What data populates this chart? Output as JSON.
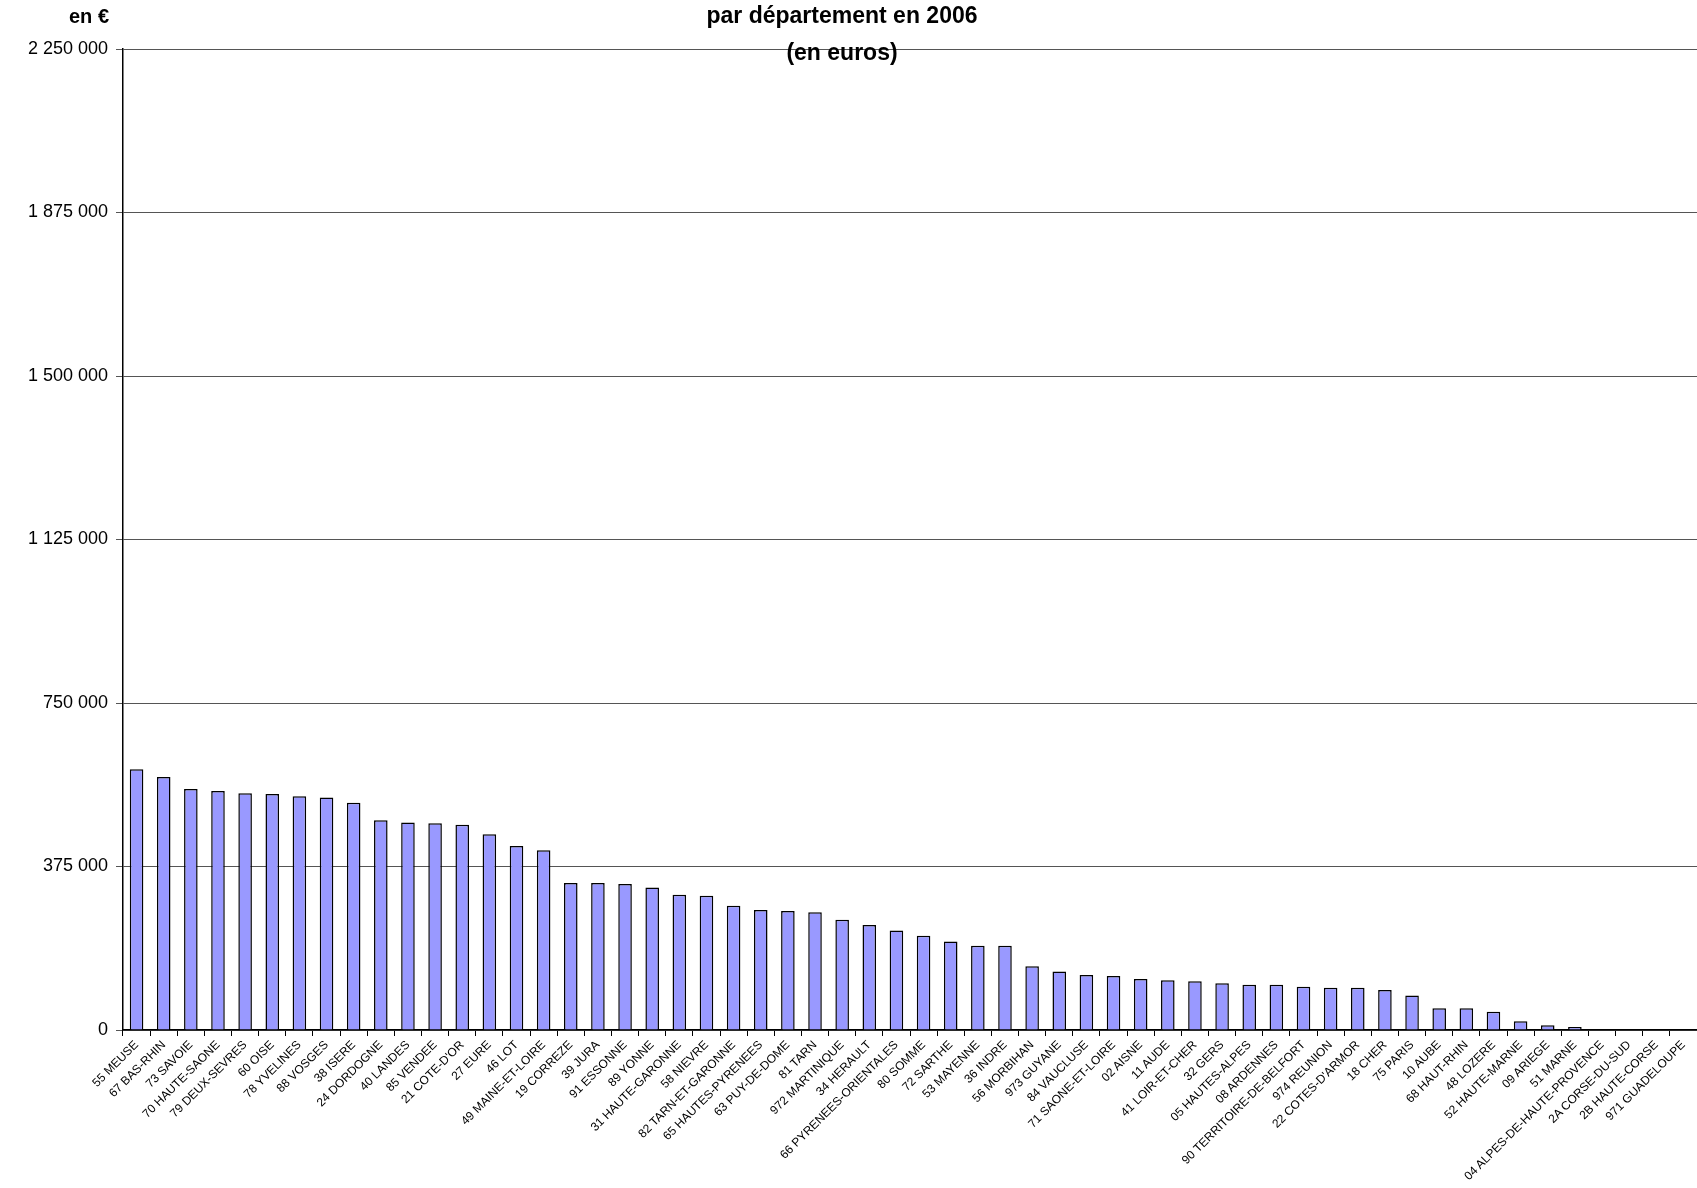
{
  "chart_data": {
    "type": "bar",
    "title": "par département en 2006\n(en euros)",
    "ylabel": "en €",
    "categories": [
      "55 MEUSE",
      "67 BAS-RHIN",
      "73 SAVOIE",
      "70 HAUTE-SAONE",
      "79 DEUX-SEVRES",
      "60 OISE",
      "78 YVELINES",
      "88 VOSGES",
      "38 ISERE",
      "24 DORDOGNE",
      "40 LANDES",
      "85 VENDEE",
      "21 COTE-D'OR",
      "27 EURE",
      "46 LOT",
      "49 MAINE-ET-LOIRE",
      "19 CORREZE",
      "39 JURA",
      "91 ESSONNE",
      "89 YONNE",
      "31 HAUTE-GARONNE",
      "58 NIEVRE",
      "82 TARN-ET-GARONNE",
      "65 HAUTES-PYRENEES",
      "63 PUY-DE-DOME",
      "81 TARN",
      "972 MARTINIQUE",
      "34 HERAULT",
      "66 PYRENEES-ORIENTALES",
      "80 SOMME",
      "72 SARTHE",
      "53 MAYENNE",
      "36 INDRE",
      "56 MORBIHAN",
      "973 GUYANE",
      "84 VAUCLUSE",
      "71 SAONE-ET-LOIRE",
      "02 AISNE",
      "11 AUDE",
      "41 LOIR-ET-CHER",
      "32 GERS",
      "05 HAUTES-ALPES",
      "08 ARDENNES",
      "90 TERRITOIRE-DE-BELFORT",
      "974 REUNION",
      "22 COTES-D'ARMOR",
      "18 CHER",
      "75 PARIS",
      "10 AUBE",
      "68 HAUT-RHIN",
      "48 LOZERE",
      "52 HAUTE-MARNE",
      "09 ARIEGE",
      "51 MARNE",
      "04 ALPES-DE-HAUTE-PROVENCE",
      "2A CORSE-DU-SUD",
      "2B HAUTE-CORSE",
      "971 GUADELOUPE"
    ],
    "values": [
      598000,
      580000,
      553000,
      548000,
      543000,
      541000,
      536000,
      533000,
      521000,
      481000,
      476000,
      474000,
      471000,
      449000,
      422000,
      412000,
      337000,
      337000,
      335000,
      327000,
      310000,
      308000,
      285000,
      275000,
      273000,
      270000,
      253000,
      241000,
      228000,
      216000,
      203000,
      193000,
      193000,
      146000,
      134000,
      126000,
      124000,
      117000,
      114000,
      112000,
      107000,
      104000,
      104000,
      99000,
      97000,
      97000,
      92000,
      79000,
      50000,
      50000,
      42000,
      20000,
      11000,
      7000,
      0,
      0,
      0,
      0
    ],
    "color": "#9999ff",
    "ylim": [
      0,
      2250000
    ],
    "yticks": [
      0,
      {
        "value": 375000,
        "label": "375 000"
      },
      {
        "value": 750000,
        "label": "750 000"
      },
      {
        "value": 1125000,
        "label": "1 125 000"
      },
      {
        "value": 1500000,
        "label": "1 500 000"
      },
      {
        "value": 1875000,
        "label": "1 875 000"
      },
      {
        "value": 2250000,
        "label": "2 250 000"
      }
    ],
    "grid": "y"
  }
}
